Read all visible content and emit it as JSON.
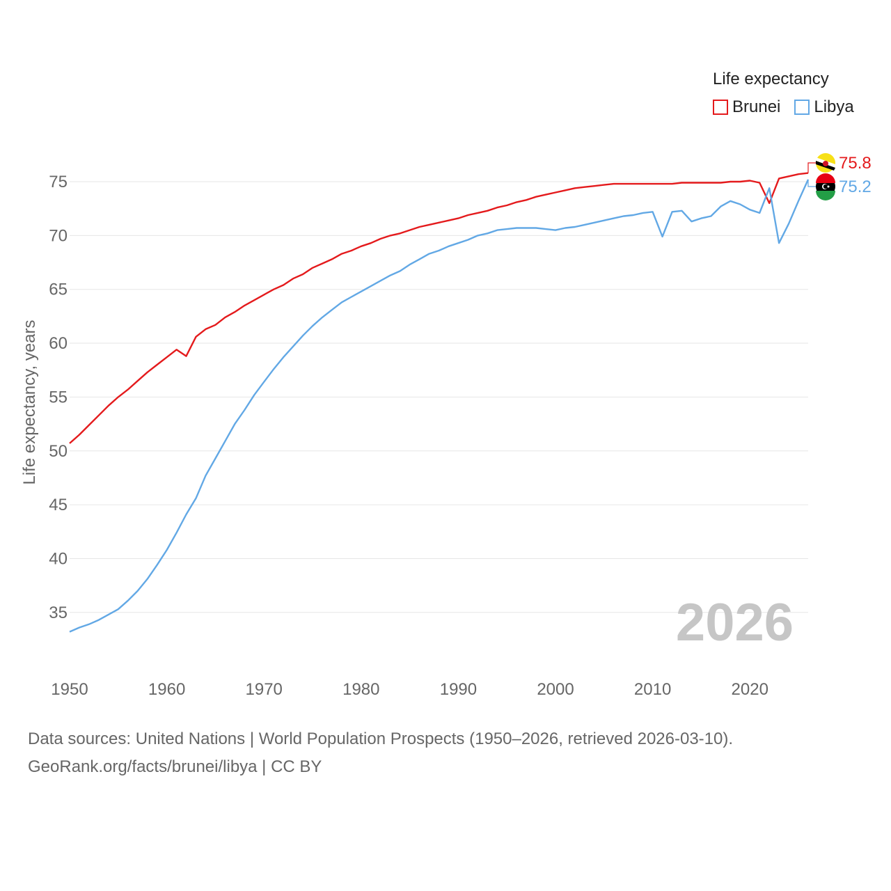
{
  "legend": {
    "title": "Life expectancy",
    "items": [
      {
        "name": "Brunei",
        "color": "#e41a1c"
      },
      {
        "name": "Libya",
        "color": "#62a8e5"
      }
    ]
  },
  "source": {
    "line1": "Data sources: United Nations | World Population Prospects (1950–2026, retrieved 2026-03-10).",
    "line2": "GeoRank.org/facts/brunei/libya | CC BY"
  },
  "chart_data": {
    "type": "line",
    "ylabel": "Life expectancy, years",
    "xlabel": "",
    "current_year": "2026",
    "xlim": [
      1950,
      2026
    ],
    "ylim": [
      32,
      77.5
    ],
    "x_ticks": [
      1950,
      1960,
      1970,
      1980,
      1990,
      2000,
      2010,
      2020
    ],
    "y_ticks": [
      35,
      40,
      45,
      50,
      55,
      60,
      65,
      70,
      75
    ],
    "grid": true,
    "flags": {
      "brunei": "brunei-flag-icon",
      "libya": "libya-flag-icon"
    },
    "x": [
      1950,
      1951,
      1952,
      1953,
      1954,
      1955,
      1956,
      1957,
      1958,
      1959,
      1960,
      1961,
      1962,
      1963,
      1964,
      1965,
      1966,
      1967,
      1968,
      1969,
      1970,
      1971,
      1972,
      1973,
      1974,
      1975,
      1976,
      1977,
      1978,
      1979,
      1980,
      1981,
      1982,
      1983,
      1984,
      1985,
      1986,
      1987,
      1988,
      1989,
      1990,
      1991,
      1992,
      1993,
      1994,
      1995,
      1996,
      1997,
      1998,
      1999,
      2000,
      2001,
      2002,
      2003,
      2004,
      2005,
      2006,
      2007,
      2008,
      2009,
      2010,
      2011,
      2012,
      2013,
      2014,
      2015,
      2016,
      2017,
      2018,
      2019,
      2020,
      2021,
      2022,
      2023,
      2024,
      2025,
      2026
    ],
    "series": [
      {
        "name": "Brunei",
        "color": "#e41a1c",
        "end_label": "75.8",
        "values": [
          50.7,
          51.5,
          52.4,
          53.3,
          54.2,
          55.0,
          55.7,
          56.5,
          57.3,
          58.0,
          58.7,
          59.4,
          58.8,
          60.6,
          61.3,
          61.7,
          62.4,
          62.9,
          63.5,
          64.0,
          64.5,
          65.0,
          65.4,
          66.0,
          66.4,
          67.0,
          67.4,
          67.8,
          68.3,
          68.6,
          69.0,
          69.3,
          69.7,
          70.0,
          70.2,
          70.5,
          70.8,
          71.0,
          71.2,
          71.4,
          71.6,
          71.9,
          72.1,
          72.3,
          72.6,
          72.8,
          73.1,
          73.3,
          73.6,
          73.8,
          74.0,
          74.2,
          74.4,
          74.5,
          74.6,
          74.7,
          74.8,
          74.8,
          74.8,
          74.8,
          74.8,
          74.8,
          74.8,
          74.9,
          74.9,
          74.9,
          74.9,
          74.9,
          75.0,
          75.0,
          75.1,
          74.9,
          73.0,
          75.3,
          75.5,
          75.7,
          75.8
        ]
      },
      {
        "name": "Libya",
        "color": "#62a8e5",
        "end_label": "75.2",
        "values": [
          33.2,
          33.6,
          33.9,
          34.3,
          34.8,
          35.3,
          36.1,
          37.0,
          38.1,
          39.4,
          40.8,
          42.4,
          44.1,
          45.6,
          47.7,
          49.3,
          50.9,
          52.5,
          53.8,
          55.2,
          56.4,
          57.6,
          58.7,
          59.7,
          60.7,
          61.6,
          62.4,
          63.1,
          63.8,
          64.3,
          64.8,
          65.3,
          65.8,
          66.3,
          66.7,
          67.3,
          67.8,
          68.3,
          68.6,
          69.0,
          69.3,
          69.6,
          70.0,
          70.2,
          70.5,
          70.6,
          70.7,
          70.7,
          70.7,
          70.6,
          70.5,
          70.7,
          70.8,
          71.0,
          71.2,
          71.4,
          71.6,
          71.8,
          71.9,
          72.1,
          72.2,
          69.9,
          72.2,
          72.3,
          71.3,
          71.6,
          71.8,
          72.7,
          73.2,
          72.9,
          72.4,
          72.1,
          74.4,
          69.3,
          71.1,
          73.2,
          75.2
        ]
      }
    ]
  }
}
